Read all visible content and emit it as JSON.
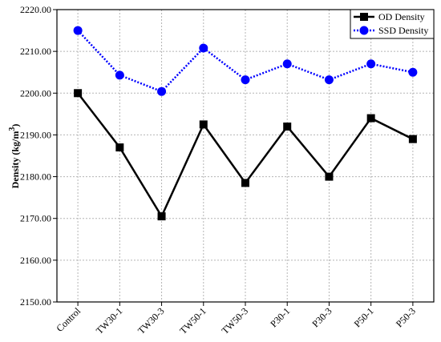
{
  "chart_data": {
    "type": "line",
    "title": "",
    "xlabel": "",
    "ylabel": "Density (kg/m",
    "ylabel_superscript": "3",
    "ylabel_close": ")",
    "categories": [
      "Control",
      "TW30-1",
      "TW30-3",
      "TW50-1",
      "TW50-3",
      "P30-1",
      "P30-3",
      "P50-1",
      "P50-3"
    ],
    "ylim": [
      2150,
      2220
    ],
    "yticks": [
      "2150.00",
      "2160.00",
      "2170.00",
      "2180.00",
      "2190.00",
      "2200.00",
      "2210.00",
      "2220.00"
    ],
    "grid": true,
    "legend_position": "top-right",
    "series": [
      {
        "name": "OD Density",
        "color": "#000000",
        "line": "solid",
        "marker": "square",
        "values": [
          2200.0,
          2187.0,
          2170.5,
          2192.5,
          2178.5,
          2192.0,
          2180.0,
          2194.0,
          2189.0
        ]
      },
      {
        "name": "SSD Density",
        "color": "#0000ff",
        "line": "dotted",
        "marker": "circle",
        "values": [
          2215.0,
          2204.3,
          2200.4,
          2210.8,
          2203.2,
          2207.0,
          2203.2,
          2207.0,
          2205.0
        ]
      }
    ]
  }
}
